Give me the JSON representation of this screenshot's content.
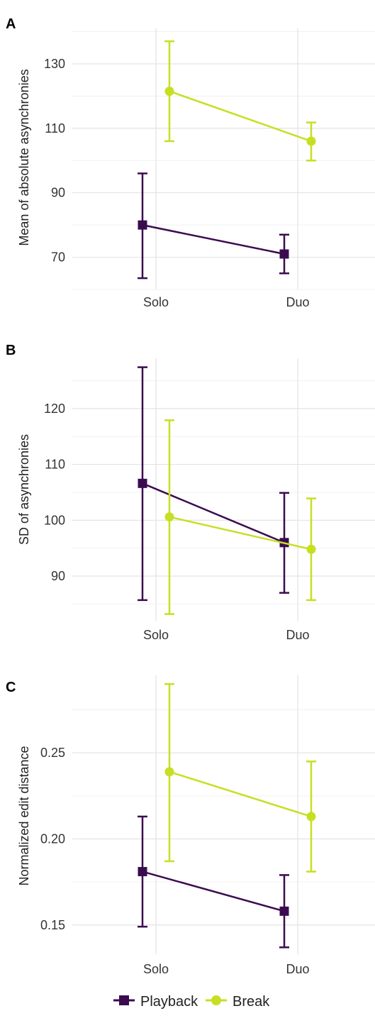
{
  "legend": [
    {
      "name": "Playback",
      "color": "#3b0b4f",
      "marker": "square"
    },
    {
      "name": "Break",
      "color": "#c7df22",
      "marker": "circle"
    }
  ],
  "chart_data": [
    {
      "type": "line",
      "panel": "A",
      "ylabel": "Mean of absolute asynchronies",
      "categories": [
        "Solo",
        "Duo"
      ],
      "ylim": [
        60,
        141
      ],
      "yticks": [
        70,
        90,
        110,
        130
      ],
      "grid": true,
      "series": [
        {
          "name": "Playback",
          "values": [
            80,
            71
          ],
          "lower": [
            63.5,
            65
          ],
          "upper": [
            96,
            77
          ]
        },
        {
          "name": "Break",
          "values": [
            121.5,
            106
          ],
          "lower": [
            106,
            100
          ],
          "upper": [
            137,
            111.8
          ]
        }
      ]
    },
    {
      "type": "line",
      "panel": "B",
      "ylabel": "SD of asynchronies",
      "categories": [
        "Solo",
        "Duo"
      ],
      "ylim": [
        82,
        129
      ],
      "yticks": [
        90,
        100,
        110,
        120
      ],
      "grid": true,
      "series": [
        {
          "name": "Playback",
          "values": [
            106.6,
            96
          ],
          "lower": [
            85.7,
            87
          ],
          "upper": [
            127.4,
            104.9
          ]
        },
        {
          "name": "Break",
          "values": [
            100.6,
            94.8
          ],
          "lower": [
            83.2,
            85.7
          ],
          "upper": [
            117.9,
            103.9
          ]
        }
      ]
    },
    {
      "type": "line",
      "panel": "C",
      "ylabel": "Normalized edit distance",
      "categories": [
        "Solo",
        "Duo"
      ],
      "ylim": [
        0.133,
        0.295
      ],
      "yticks": [
        0.15,
        0.2,
        0.25
      ],
      "yticklabels": [
        "0.15",
        "0.20",
        "0.25"
      ],
      "grid": true,
      "series": [
        {
          "name": "Playback",
          "values": [
            0.181,
            0.158
          ],
          "lower": [
            0.149,
            0.137
          ],
          "upper": [
            0.213,
            0.179
          ]
        },
        {
          "name": "Break",
          "values": [
            0.239,
            0.213
          ],
          "lower": [
            0.187,
            0.181
          ],
          "upper": [
            0.29,
            0.245
          ]
        }
      ]
    }
  ]
}
